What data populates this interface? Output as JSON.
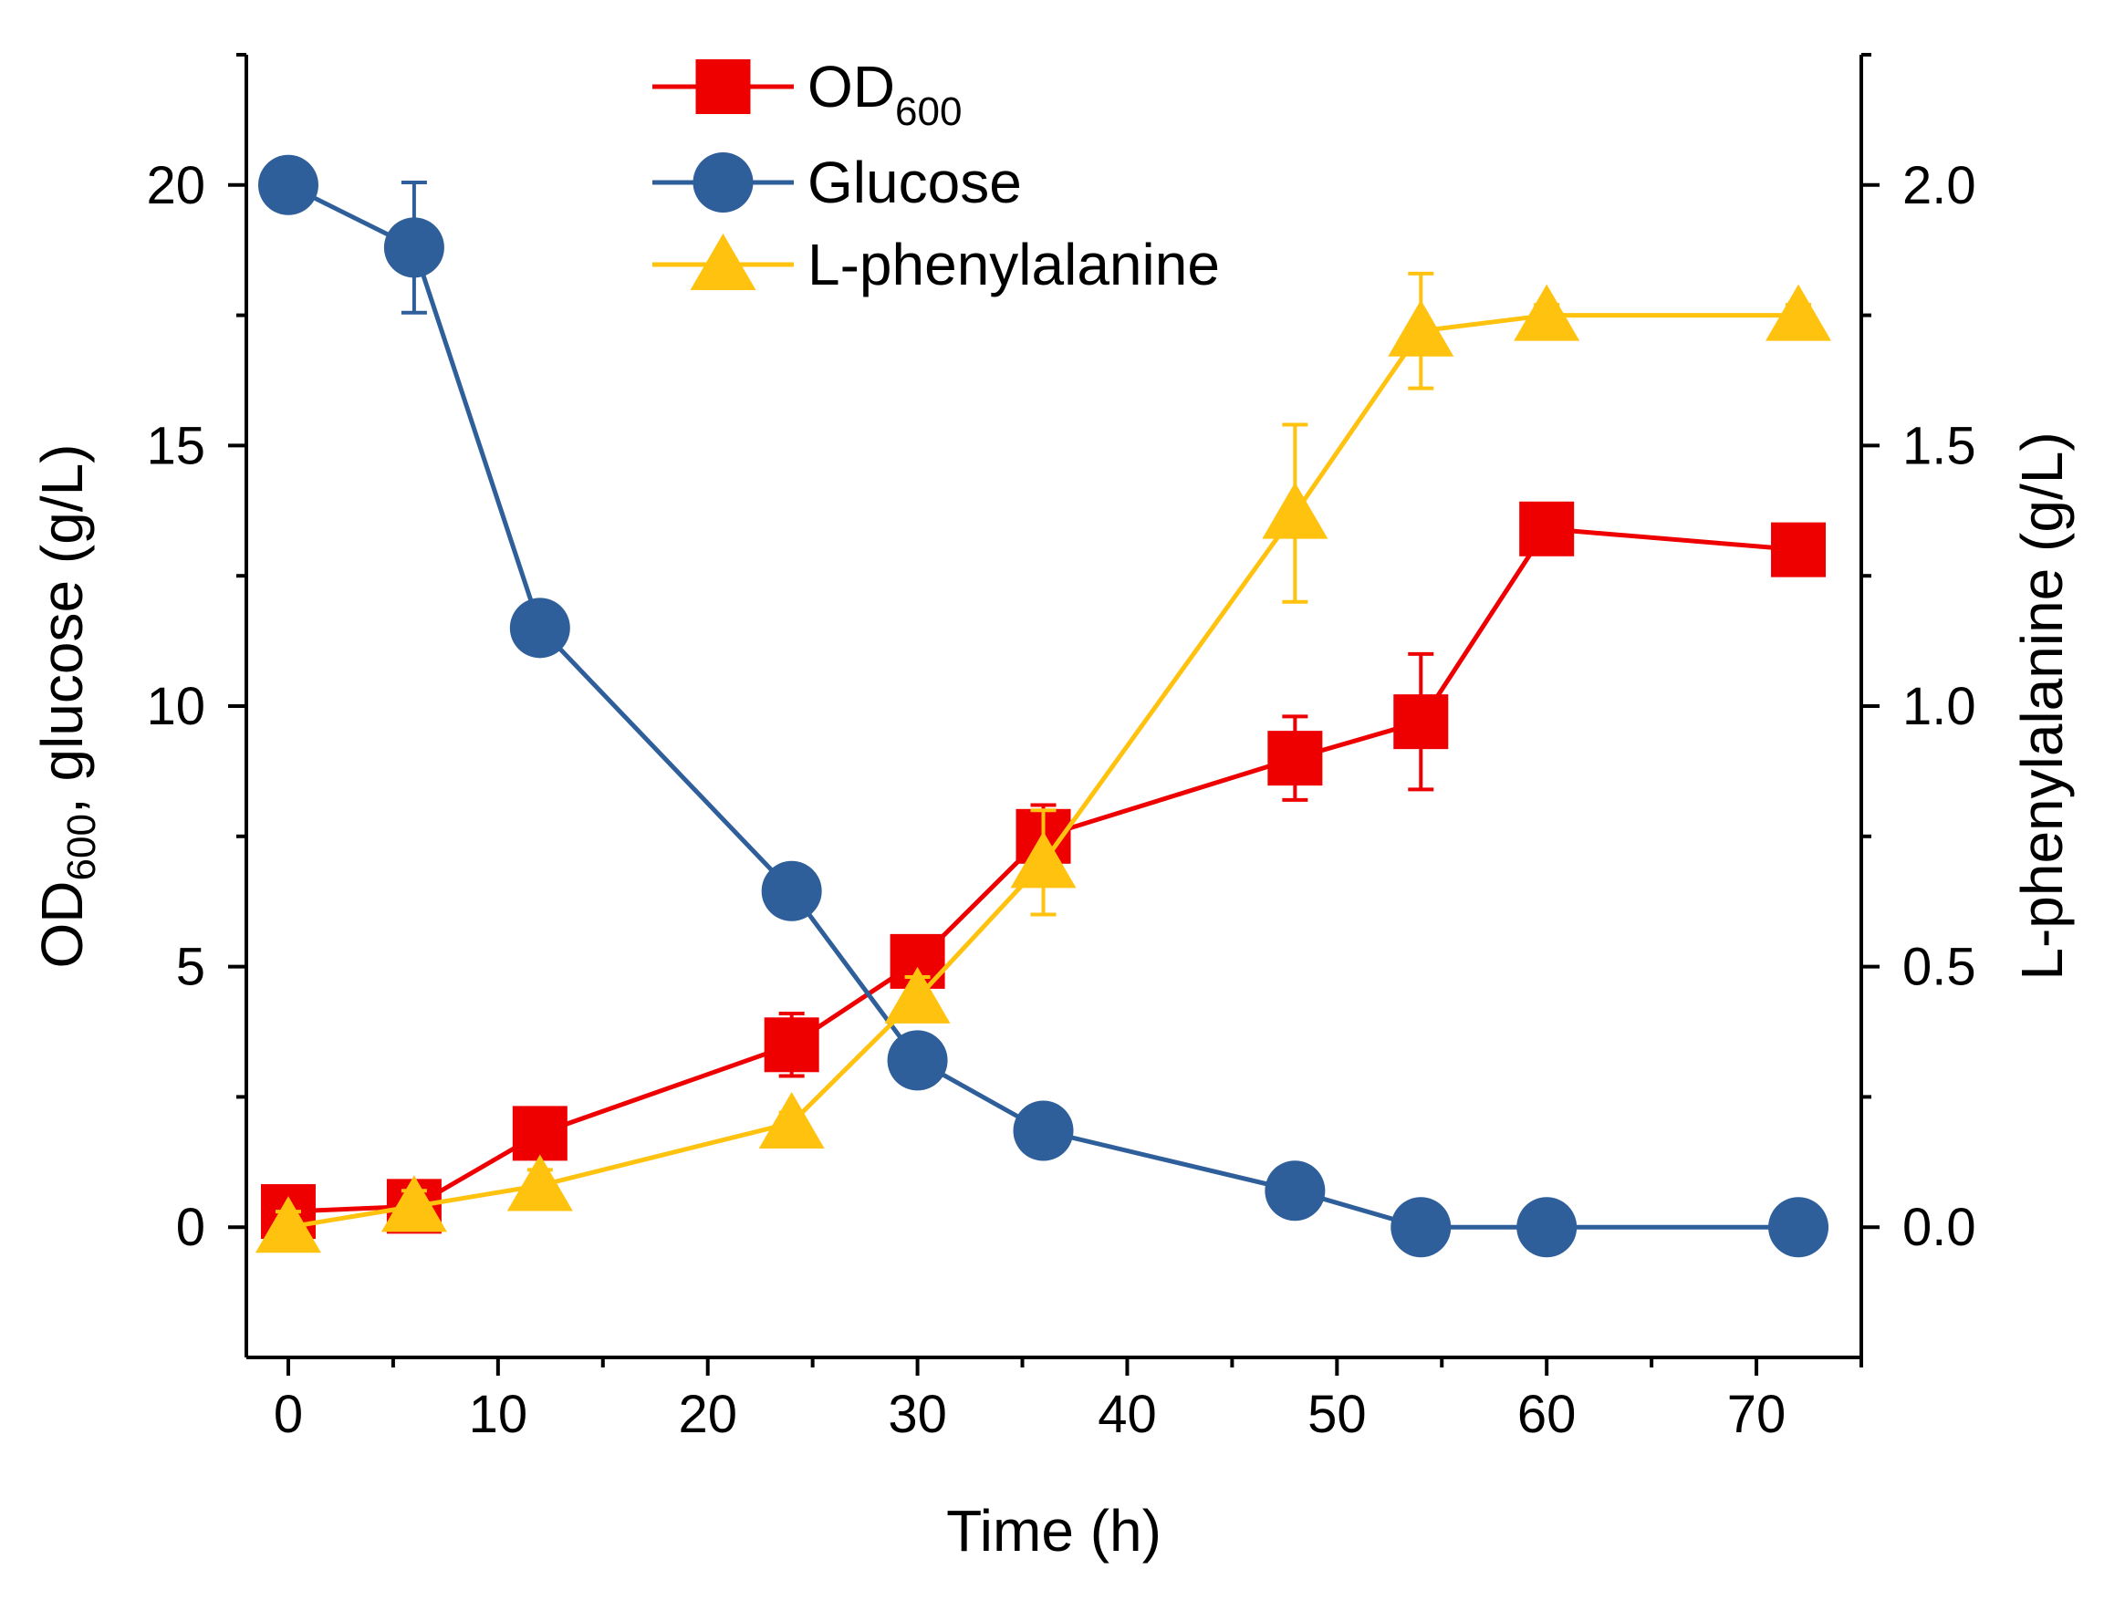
{
  "chart_data": {
    "type": "line",
    "title": "",
    "x": [
      0,
      6,
      12,
      24,
      30,
      36,
      48,
      54,
      60,
      72
    ],
    "xlabel": "Time (h)",
    "xlim": [
      -2,
      75
    ],
    "xticks": [
      0,
      10,
      20,
      30,
      40,
      50,
      60,
      70
    ],
    "xtick_labels": [
      "0",
      "10",
      "20",
      "30",
      "40",
      "50",
      "60",
      "70"
    ],
    "ylabel_left": {
      "prefix": "OD",
      "sub": "600",
      "suffix": ", glucose (g/L)"
    },
    "ylim_left": [
      -2.5,
      22.5
    ],
    "yticks_left": [
      0,
      5,
      10,
      15,
      20
    ],
    "ytick_labels_left": [
      "0",
      "5",
      "10",
      "15",
      "20"
    ],
    "ylabel_right": "L-phenylalanine (g/L)",
    "ylim_right": [
      -0.25,
      2.25
    ],
    "yticks_right": [
      0,
      0.5,
      1.0,
      1.5,
      2.0
    ],
    "ytick_labels_right": [
      "0.0",
      "0.5",
      "1.0",
      "1.5",
      "2.0"
    ],
    "legend_position": "top-center",
    "series": [
      {
        "name": "OD600",
        "legend": {
          "main": "OD",
          "sub": "600"
        },
        "axis": "left",
        "color": "#ee0000",
        "marker": "square",
        "values": [
          0.3,
          0.4,
          1.8,
          3.5,
          5.1,
          7.5,
          9.0,
          9.7,
          13.4,
          13.0
        ],
        "errors": [
          0.4,
          0.4,
          0.2,
          0.6,
          0.3,
          0.6,
          0.8,
          1.3,
          0.2,
          0.2
        ]
      },
      {
        "name": "Glucose",
        "legend": {
          "main": "Glucose",
          "sub": ""
        },
        "axis": "left",
        "color": "#2f5f9b",
        "marker": "circle",
        "values": [
          20.0,
          18.8,
          11.5,
          6.45,
          3.2,
          1.85,
          0.7,
          0.0,
          0.0,
          0.0
        ],
        "errors": [
          0.0,
          1.25,
          0.0,
          0.0,
          0.0,
          0.0,
          0.0,
          0.0,
          0.0,
          0.0
        ]
      },
      {
        "name": "L-phenylalanine",
        "legend": {
          "main": "L-phenylalanine",
          "sub": ""
        },
        "axis": "right",
        "color": "#ffc20e",
        "marker": "triangle",
        "values": [
          0.0,
          0.04,
          0.08,
          0.2,
          0.44,
          0.7,
          1.37,
          1.72,
          1.75,
          1.75
        ],
        "errors": [
          0.03,
          0.03,
          0.03,
          0.02,
          0.04,
          0.1,
          0.17,
          0.11,
          0.02,
          0.02
        ]
      }
    ]
  }
}
